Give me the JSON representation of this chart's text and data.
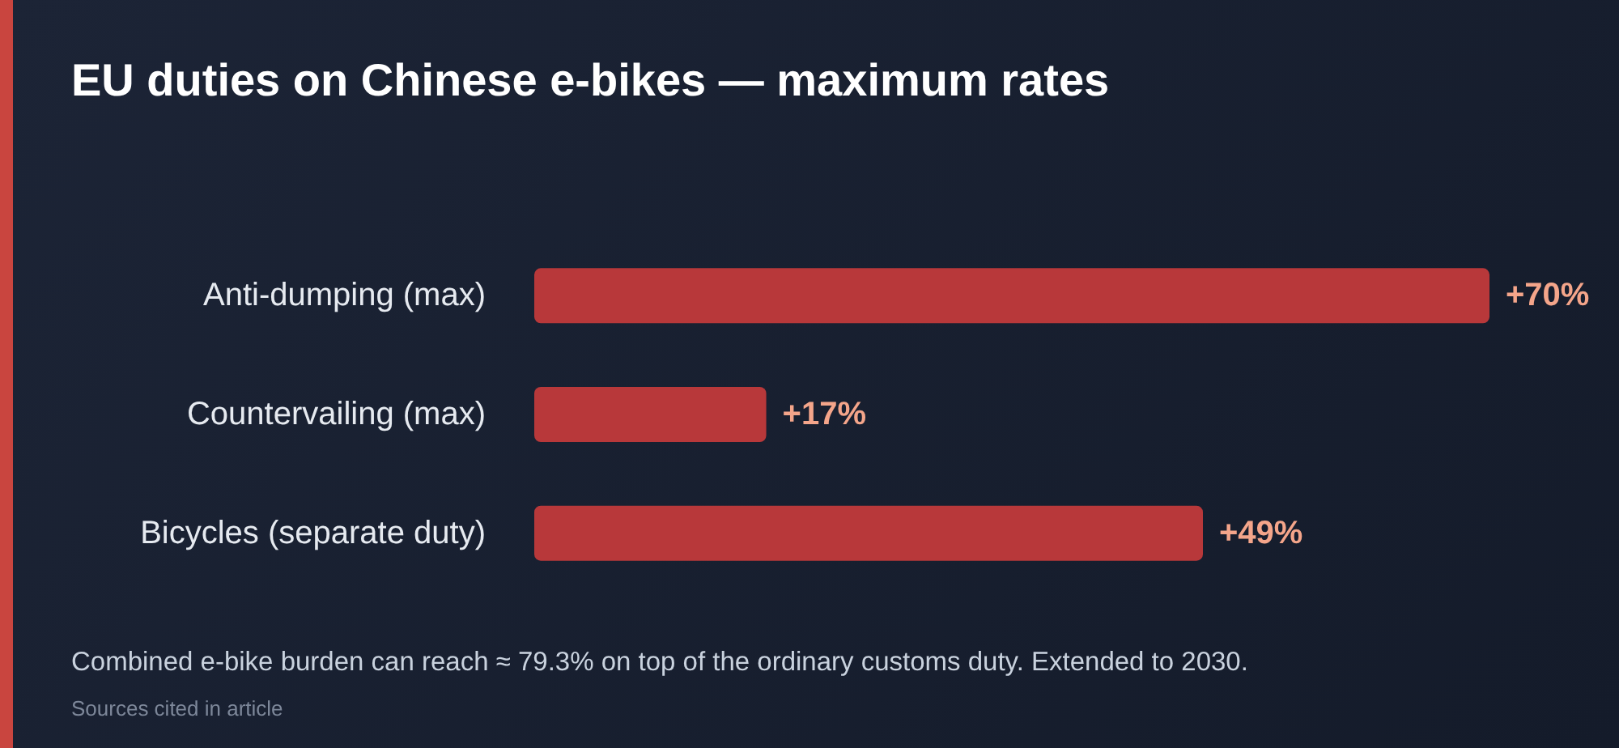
{
  "chart_data": {
    "type": "bar",
    "orientation": "horizontal",
    "title": "EU duties on Chinese e-bikes — maximum rates",
    "categories": [
      "Anti-dumping (max)",
      "Countervailing (max)",
      "Bicycles (separate duty)"
    ],
    "values": [
      70,
      17,
      49
    ],
    "color": "#b8383a",
    "value_labels": [
      "+70%",
      "+17%",
      "+49%"
    ],
    "annotations": [
      "Combined e-bike burden can reach ≈ 79.3% on top of the ordinary customs duty. Extended to 2030.",
      "Sources cited in article"
    ]
  }
}
